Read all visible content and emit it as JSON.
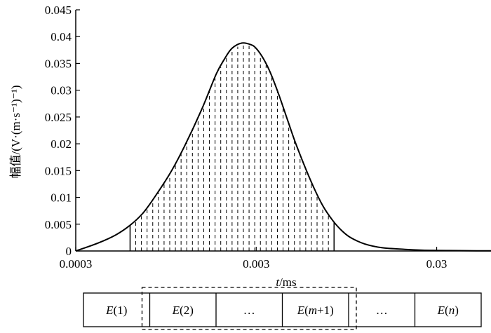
{
  "chart_data": {
    "type": "line",
    "xscale": "log",
    "xlim": [
      0.0003,
      0.06
    ],
    "ylim": [
      0,
      0.045
    ],
    "xticks": [
      {
        "value": 0.0003,
        "label": "0.0003"
      },
      {
        "value": 0.003,
        "label": "0.003"
      },
      {
        "value": 0.03,
        "label": "0.03"
      }
    ],
    "yticks": [
      {
        "value": 0,
        "label": "0"
      },
      {
        "value": 0.005,
        "label": "0.005"
      },
      {
        "value": 0.01,
        "label": "0.01"
      },
      {
        "value": 0.015,
        "label": "0.015"
      },
      {
        "value": 0.02,
        "label": "0.02"
      },
      {
        "value": 0.025,
        "label": "0.025"
      },
      {
        "value": 0.03,
        "label": "0.03"
      },
      {
        "value": 0.035,
        "label": "0.035"
      },
      {
        "value": 0.04,
        "label": "0.04"
      },
      {
        "value": 0.045,
        "label": "0.045"
      }
    ],
    "xlabel": {
      "italic": "t",
      "rest": "/ms"
    },
    "ylabel": "幅值/(V·(m·s⁻¹)⁻¹)",
    "curve": {
      "x": [
        0.0003,
        0.0004,
        0.0005,
        0.0006,
        0.0007,
        0.0008,
        0.001,
        0.0012,
        0.0015,
        0.0018,
        0.002,
        0.0022,
        0.0025,
        0.0028,
        0.003,
        0.0033,
        0.0036,
        0.004,
        0.0045,
        0.005,
        0.006,
        0.007,
        0.008,
        0.009,
        0.01,
        0.012,
        0.015,
        0.02,
        0.025,
        0.03,
        0.04,
        0.05,
        0.06
      ],
      "y": [
        0.0,
        0.0015,
        0.003,
        0.0048,
        0.0069,
        0.0095,
        0.0145,
        0.0195,
        0.0265,
        0.033,
        0.0358,
        0.0378,
        0.0388,
        0.0385,
        0.0378,
        0.0358,
        0.0332,
        0.0292,
        0.0242,
        0.0198,
        0.0132,
        0.0085,
        0.0056,
        0.0037,
        0.0025,
        0.0013,
        0.0006,
        0.0003,
        0.00015,
        0.0001,
        6e-05,
        4e-05,
        3e-05
      ]
    },
    "band_start": 0.0006,
    "band_end": 0.0081,
    "band_lines": 35,
    "grid": false,
    "legend": "none"
  },
  "segments": {
    "cells": [
      {
        "name": "E",
        "arg": "(1)"
      },
      {
        "name": "E",
        "arg": "(2)"
      },
      {
        "name": "",
        "arg": "…"
      },
      {
        "name": "E",
        "arg": "(m+1)"
      },
      {
        "name": "",
        "arg": "…"
      },
      {
        "name": "E",
        "arg": "(n)"
      }
    ],
    "highlight_from": 1,
    "highlight_to": 3
  }
}
